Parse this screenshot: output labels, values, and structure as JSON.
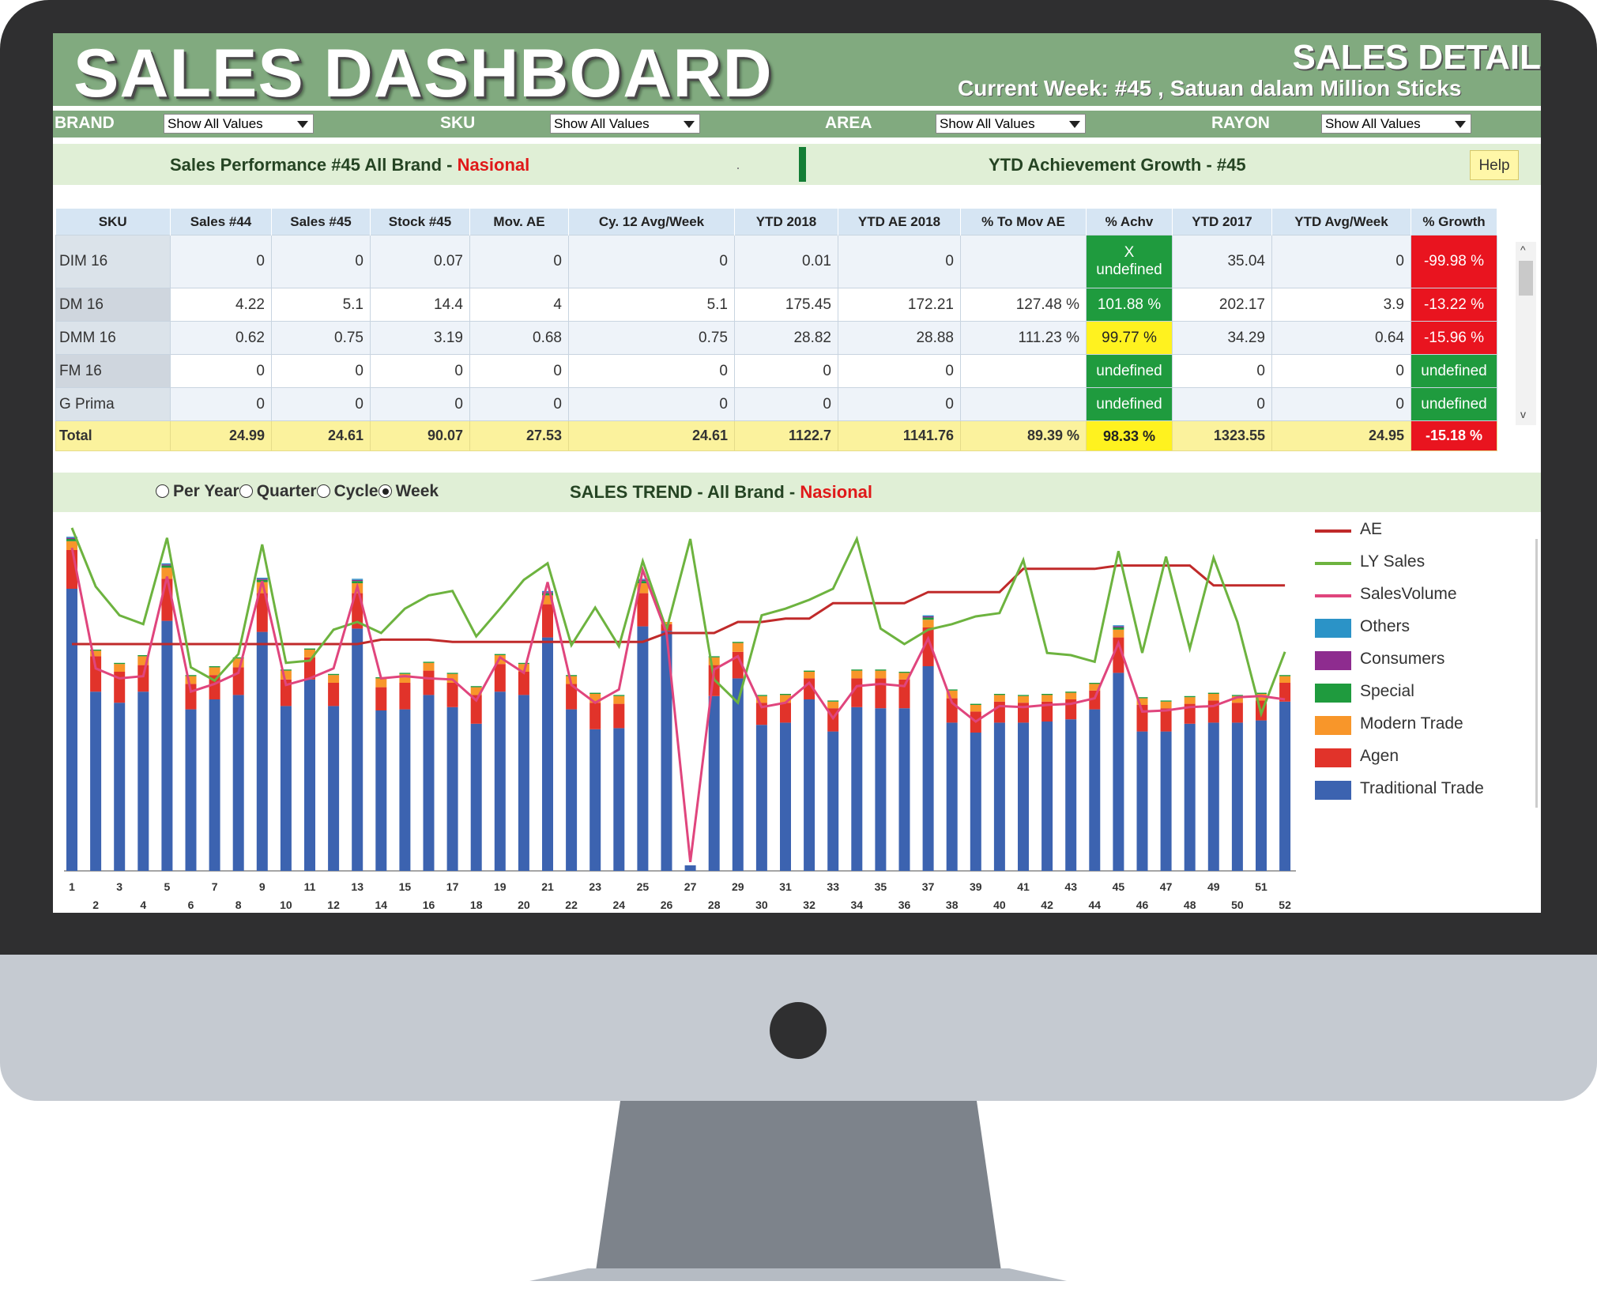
{
  "header": {
    "title": "SALES DASHBOARD",
    "subtitle": "SALES DETAIL",
    "current_week": "Current Week: #45 , Satuan dalam Million Sticks"
  },
  "filters": [
    {
      "label": "BRAND",
      "value": "Show All Values"
    },
    {
      "label": "SKU",
      "value": "Show All Values"
    },
    {
      "label": "AREA",
      "value": "Show All Values"
    },
    {
      "label": "RAYON",
      "value": "Show All Values"
    }
  ],
  "performance": {
    "title_prefix": "Sales Performance #45 All Brand - ",
    "title_highlight": "Nasional",
    "ytd_title": "YTD Achievement Growth - #45",
    "help_label": "Help"
  },
  "table": {
    "columns": [
      "SKU",
      "Sales #44",
      "Sales #45",
      "Stock #45",
      "Mov. AE",
      "Cy. 12  Avg/Week",
      "YTD 2018",
      "YTD AE 2018",
      "% To Mov AE",
      "% Achv",
      "YTD 2017",
      "YTD Avg/Week",
      "% Growth"
    ],
    "rows": [
      {
        "sku": "DIM 16",
        "sales44": "0",
        "sales45": "0",
        "stock45": "0.07",
        "movae": "0",
        "cy12": "0",
        "ytd2018": "0.01",
        "ytdae2018": "0",
        "tomovae": "",
        "achv": "X\nundefined",
        "achv_status": "green",
        "ytd2017": "35.04",
        "ytdavg": "0",
        "growth": "-99.98 %",
        "growth_status": "red"
      },
      {
        "sku": "DM 16",
        "sales44": "4.22",
        "sales45": "5.1",
        "stock45": "14.4",
        "movae": "4",
        "cy12": "5.1",
        "ytd2018": "175.45",
        "ytdae2018": "172.21",
        "tomovae": "127.48 %",
        "achv": "101.88 %",
        "achv_status": "green",
        "ytd2017": "202.17",
        "ytdavg": "3.9",
        "growth": "-13.22 %",
        "growth_status": "red"
      },
      {
        "sku": "DMM 16",
        "sales44": "0.62",
        "sales45": "0.75",
        "stock45": "3.19",
        "movae": "0.68",
        "cy12": "0.75",
        "ytd2018": "28.82",
        "ytdae2018": "28.88",
        "tomovae": "111.23 %",
        "achv": "99.77 %",
        "achv_status": "yellow",
        "ytd2017": "34.29",
        "ytdavg": "0.64",
        "growth": "-15.96 %",
        "growth_status": "red"
      },
      {
        "sku": "FM 16",
        "sales44": "0",
        "sales45": "0",
        "stock45": "0",
        "movae": "0",
        "cy12": "0",
        "ytd2018": "0",
        "ytdae2018": "0",
        "tomovae": "",
        "achv": "undefined",
        "achv_status": "green",
        "ytd2017": "0",
        "ytdavg": "0",
        "growth": "undefined",
        "growth_status": "green"
      },
      {
        "sku": "G Prima",
        "sales44": "0",
        "sales45": "0",
        "stock45": "0",
        "movae": "0",
        "cy12": "0",
        "ytd2018": "0",
        "ytdae2018": "0",
        "tomovae": "",
        "achv": "undefined",
        "achv_status": "green",
        "ytd2017": "0",
        "ytdavg": "0",
        "growth": "undefined",
        "growth_status": "green"
      }
    ],
    "total": {
      "sku": "Total",
      "sales44": "24.99",
      "sales45": "24.61",
      "stock45": "90.07",
      "movae": "27.53",
      "cy12": "24.61",
      "ytd2018": "1122.7",
      "ytdae2018": "1141.76",
      "tomovae": "89.39 %",
      "achv": "98.33 %",
      "achv_status": "yellow",
      "ytd2017": "1323.55",
      "ytdavg": "24.95",
      "growth": "-15.18 %",
      "growth_status": "red"
    }
  },
  "trend": {
    "period_options": [
      "Per Year",
      "Quarter",
      "Cycle",
      "Week"
    ],
    "selected_period": "Week",
    "title_prefix": "SALES TREND - All Brand - ",
    "title_highlight": "Nasional"
  },
  "colors": {
    "traditional_trade": "#3c63b0",
    "agen": "#e1332a",
    "modern_trade": "#f8962a",
    "special": "#1f9b3e",
    "consumers": "#8e2c8f",
    "others": "#2b93c7",
    "ae": "#c02a2a",
    "ly_sales": "#6db33f",
    "sales_volume": "#e0457d"
  },
  "chart_data": {
    "type": "bar",
    "stacked": true,
    "x": [
      1,
      2,
      3,
      4,
      5,
      6,
      7,
      8,
      9,
      10,
      11,
      12,
      13,
      14,
      15,
      16,
      17,
      18,
      19,
      20,
      21,
      22,
      23,
      24,
      25,
      26,
      27,
      28,
      29,
      30,
      31,
      32,
      33,
      34,
      35,
      36,
      37,
      38,
      39,
      40,
      41,
      42,
      43,
      44,
      45,
      46,
      47,
      48,
      49,
      50,
      51,
      52
    ],
    "xlim": [
      1,
      52
    ],
    "ylim": [
      0,
      30
    ],
    "grid": false,
    "legend_position": "right",
    "series": [
      {
        "name": "Traditional Trade",
        "kind": "bar",
        "values": [
          25.5,
          16.2,
          15.2,
          16.2,
          22.6,
          14.6,
          15.5,
          15.9,
          21.6,
          14.9,
          17.3,
          14.9,
          21.9,
          14.5,
          14.6,
          15.9,
          14.8,
          13.3,
          16.2,
          15.9,
          21.1,
          14.6,
          12.8,
          12.9,
          22.1,
          21.7,
          0.5,
          15.8,
          17.4,
          13.2,
          13.4,
          15.5,
          12.6,
          14.8,
          14.7,
          14.7,
          18.5,
          13.4,
          12.5,
          13.4,
          13.4,
          13.5,
          13.7,
          14.6,
          17.9,
          12.6,
          12.6,
          13.3,
          13.4,
          13.4,
          13.6,
          15.3
        ]
      },
      {
        "name": "Agen",
        "kind": "bar",
        "values": [
          3.5,
          3.2,
          2.8,
          2.4,
          3.8,
          2.3,
          2.2,
          2.5,
          3.5,
          2.4,
          2.0,
          2.1,
          3.2,
          2.1,
          2.4,
          2.2,
          2.2,
          2.6,
          2.5,
          2.1,
          3.0,
          2.3,
          2.4,
          2.2,
          3.0,
          0.6,
          0,
          2.8,
          2.4,
          2.0,
          1.8,
          1.9,
          2.1,
          2.6,
          2.7,
          2.6,
          3.5,
          2.2,
          1.9,
          1.9,
          1.8,
          1.8,
          1.8,
          1.7,
          3.2,
          2.4,
          2.1,
          1.8,
          2.0,
          1.8,
          1.8,
          1.7
        ]
      },
      {
        "name": "Modern Trade",
        "kind": "bar",
        "values": [
          0.8,
          0.5,
          0.7,
          0.8,
          1.0,
          0.7,
          0.7,
          0.8,
          1.0,
          0.8,
          0.7,
          0.7,
          0.9,
          0.8,
          0.8,
          0.7,
          0.8,
          0.7,
          0.8,
          0.7,
          0.8,
          0.7,
          0.8,
          0.7,
          0.9,
          0.2,
          0,
          0.7,
          0.8,
          0.6,
          0.7,
          0.6,
          0.6,
          0.7,
          0.7,
          0.6,
          0.7,
          0.7,
          0.6,
          0.6,
          0.6,
          0.6,
          0.6,
          0.6,
          0.7,
          0.6,
          0.6,
          0.6,
          0.6,
          0.6,
          0.6,
          0.6
        ]
      },
      {
        "name": "Special",
        "kind": "bar",
        "values": [
          0.2,
          0.1,
          0.1,
          0.1,
          0.2,
          0.1,
          0.1,
          0.1,
          0.2,
          0.1,
          0.1,
          0.1,
          0.2,
          0.1,
          0.1,
          0.1,
          0.1,
          0.1,
          0.1,
          0.1,
          0.2,
          0.1,
          0.1,
          0.1,
          0.2,
          0,
          0,
          0.1,
          0.1,
          0.1,
          0.1,
          0.1,
          0.1,
          0.1,
          0.1,
          0.1,
          0.2,
          0.1,
          0.1,
          0.1,
          0.1,
          0.1,
          0.1,
          0.1,
          0.2,
          0.1,
          0.1,
          0.1,
          0.1,
          0.1,
          0.1,
          0.1
        ]
      },
      {
        "name": "Consumers",
        "kind": "bar",
        "values": [
          0.1,
          0,
          0,
          0,
          0.1,
          0,
          0,
          0,
          0.1,
          0,
          0,
          0,
          0.1,
          0,
          0,
          0,
          0,
          0,
          0,
          0,
          0.1,
          0,
          0,
          0,
          0.1,
          0,
          0,
          0,
          0,
          0,
          0,
          0,
          0,
          0,
          0,
          0,
          0.1,
          0,
          0,
          0,
          0,
          0,
          0,
          0,
          0.1,
          0,
          0,
          0,
          0,
          0,
          0,
          0
        ]
      },
      {
        "name": "Others",
        "kind": "bar",
        "values": [
          0.1,
          0,
          0,
          0,
          0.1,
          0,
          0,
          0,
          0.1,
          0,
          0,
          0,
          0.1,
          0,
          0,
          0,
          0,
          0,
          0,
          0,
          0.1,
          0,
          0,
          0,
          0.1,
          0,
          0,
          0,
          0,
          0,
          0,
          0,
          0,
          0,
          0,
          0,
          0.1,
          0,
          0,
          0,
          0,
          0,
          0,
          0,
          0.1,
          0,
          0,
          0,
          0,
          0,
          0,
          0
        ]
      },
      {
        "name": "AE",
        "kind": "line",
        "values": [
          20.5,
          20.5,
          20.5,
          20.5,
          20.5,
          20.5,
          20.5,
          20.5,
          20.5,
          20.5,
          20.5,
          20.5,
          20.5,
          20.9,
          20.9,
          20.9,
          20.7,
          20.7,
          20.7,
          20.7,
          20.7,
          20.7,
          20.7,
          20.7,
          20.7,
          21.5,
          21.5,
          21.5,
          22.5,
          22.5,
          22.8,
          22.8,
          24.2,
          24.2,
          24.2,
          24.2,
          25.2,
          25.2,
          25.2,
          25.2,
          27.3,
          27.3,
          27.3,
          27.3,
          27.6,
          27.6,
          27.6,
          27.6,
          25.8,
          25.8,
          25.8,
          25.8
        ]
      },
      {
        "name": "LY Sales",
        "kind": "line",
        "values": [
          31.0,
          25.7,
          23.1,
          22.3,
          30.1,
          18.4,
          17.2,
          19.6,
          29.5,
          18.8,
          19.0,
          21.8,
          22.5,
          21.5,
          23.7,
          24.9,
          25.3,
          21.2,
          23.7,
          26.3,
          27.8,
          20.4,
          23.8,
          20.3,
          28.0,
          21.8,
          30.0,
          17.3,
          15.2,
          23.1,
          23.7,
          24.5,
          25.5,
          30.0,
          21.9,
          20.5,
          21.8,
          22.3,
          23.0,
          23.3,
          28.1,
          19.7,
          19.5,
          18.9,
          28.9,
          19.7,
          28.4,
          20.1,
          28.3,
          22.5,
          14.2,
          19.8
        ]
      },
      {
        "name": "SalesVolume",
        "kind": "line",
        "values": [
          29.2,
          18.3,
          17.4,
          17.6,
          26.6,
          16.2,
          16.9,
          17.9,
          26.2,
          16.8,
          17.4,
          18.3,
          25.7,
          17.4,
          17.6,
          17.4,
          17.3,
          15.4,
          19.3,
          17.9,
          26.1,
          16.8,
          15.2,
          16.4,
          27.2,
          21.5,
          0.8,
          18.2,
          19.4,
          14.8,
          15.2,
          17.0,
          13.8,
          16.7,
          16.9,
          16.7,
          21.0,
          15.2,
          13.5,
          14.9,
          14.8,
          15.0,
          15.1,
          15.6,
          20.6,
          14.4,
          14.5,
          14.8,
          14.9,
          15.7,
          15.8,
          15.5
        ]
      }
    ]
  }
}
